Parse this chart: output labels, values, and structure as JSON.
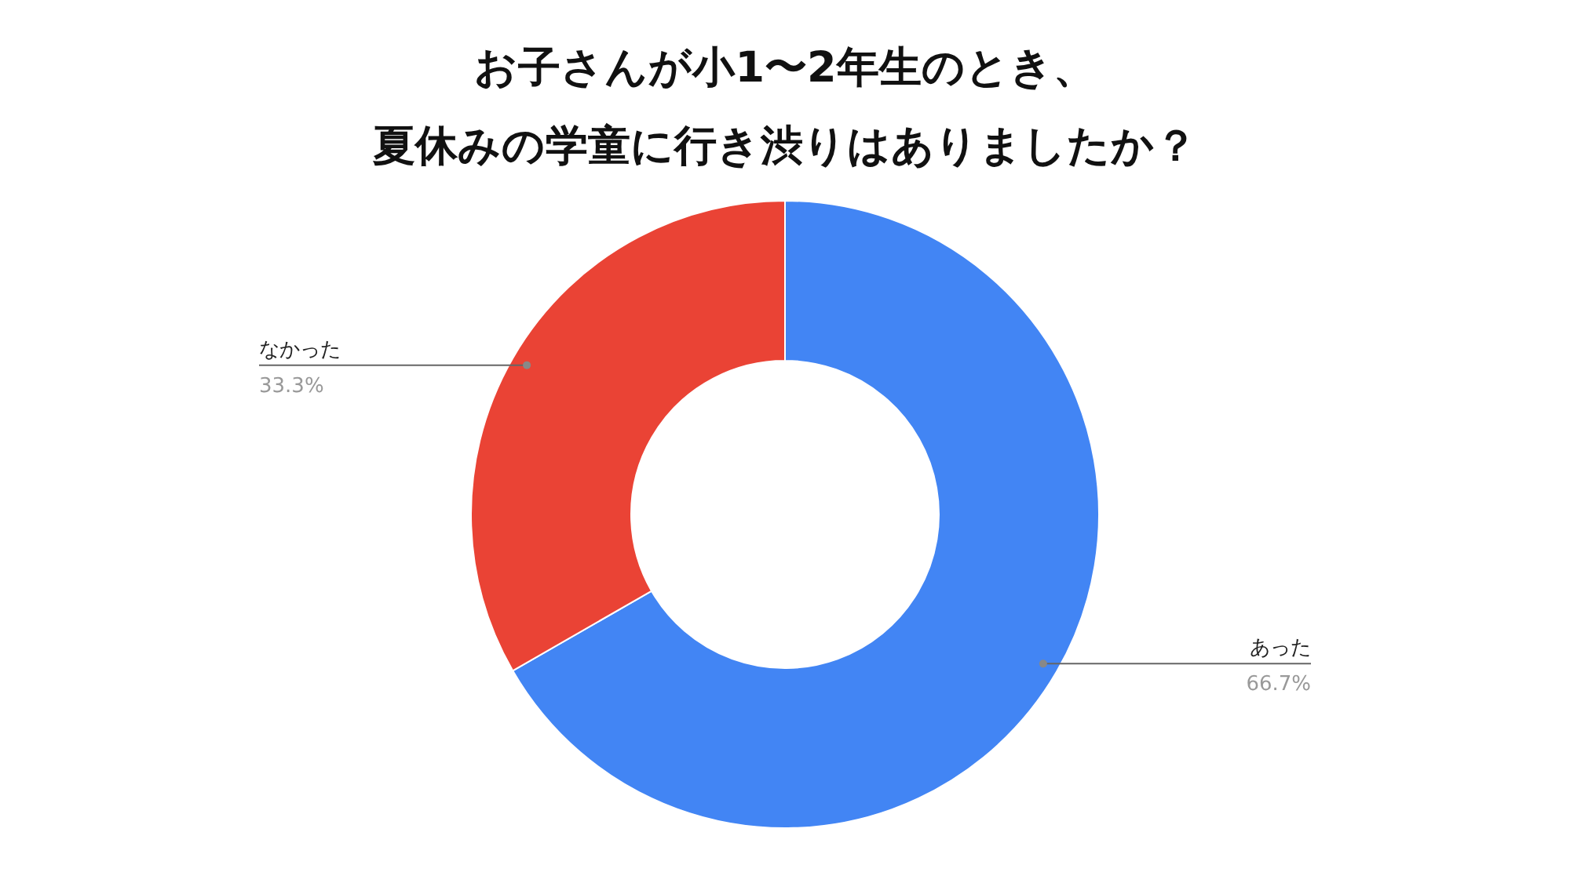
{
  "chart_data": {
    "type": "donut",
    "title": "お子さんが小1〜2年生のとき、夏休みの学童に行き渋りはありましたか？",
    "categories": [
      "あった",
      "なかった"
    ],
    "values": [
      66.7,
      33.3
    ],
    "colors": [
      "#4285f4",
      "#ea4335"
    ],
    "value_labels": [
      "66.7%",
      "33.3%"
    ]
  }
}
